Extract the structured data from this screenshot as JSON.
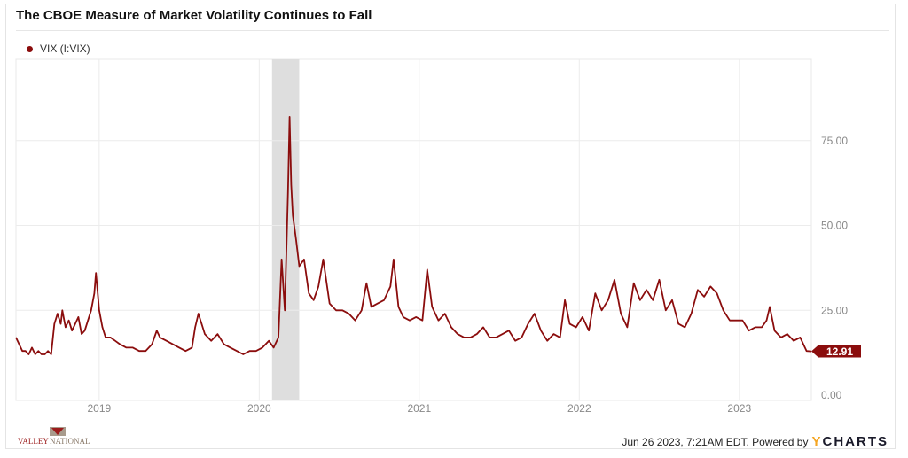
{
  "title": "The CBOE Measure of Market Volatility Continues to Fall",
  "footer": {
    "timestamp": "Jun 26 2023, 7:21AM EDT. Powered by",
    "brand_y": "Y",
    "brand_rest": "CHARTS"
  },
  "logo": {
    "text": "VALLEY NATIONAL"
  },
  "chart_data": {
    "type": "line",
    "title": "The CBOE Measure of Market Volatility Continues to Fall",
    "legend": [
      {
        "name": "VIX (I:VIX)",
        "color": "#8b0d0d"
      }
    ],
    "legend_placement": "top-left",
    "xlim": [
      2018.48,
      2023.45
    ],
    "ylim": [
      0,
      92
    ],
    "y_ticks": [
      {
        "v": 0,
        "label": "0.00"
      },
      {
        "v": 25,
        "label": "25.00"
      },
      {
        "v": 50,
        "label": "50.00"
      },
      {
        "v": 75,
        "label": "75.00"
      }
    ],
    "x_ticks": [
      {
        "v": 2019,
        "label": "2019"
      },
      {
        "v": 2020,
        "label": "2020"
      },
      {
        "v": 2021,
        "label": "2021"
      },
      {
        "v": 2022,
        "label": "2022"
      },
      {
        "v": 2023,
        "label": "2023"
      }
    ],
    "shaded_region": [
      2020.08,
      2020.25
    ],
    "last_value": "12.91",
    "grid": true,
    "series": [
      {
        "name": "VIX (I:VIX)",
        "x": [
          2018.48,
          2018.5,
          2018.52,
          2018.54,
          2018.56,
          2018.58,
          2018.6,
          2018.62,
          2018.64,
          2018.66,
          2018.68,
          2018.7,
          2018.72,
          2018.74,
          2018.76,
          2018.77,
          2018.79,
          2018.81,
          2018.83,
          2018.85,
          2018.87,
          2018.89,
          2018.91,
          2018.93,
          2018.95,
          2018.97,
          2018.98,
          2019.0,
          2019.02,
          2019.04,
          2019.07,
          2019.1,
          2019.13,
          2019.17,
          2019.21,
          2019.25,
          2019.29,
          2019.33,
          2019.36,
          2019.38,
          2019.42,
          2019.46,
          2019.5,
          2019.54,
          2019.58,
          2019.6,
          2019.62,
          2019.66,
          2019.7,
          2019.74,
          2019.78,
          2019.82,
          2019.86,
          2019.9,
          2019.94,
          2019.98,
          2020.02,
          2020.06,
          2020.09,
          2020.12,
          2020.14,
          2020.16,
          2020.18,
          2020.19,
          2020.2,
          2020.21,
          2020.23,
          2020.25,
          2020.28,
          2020.31,
          2020.34,
          2020.37,
          2020.4,
          2020.44,
          2020.48,
          2020.52,
          2020.56,
          2020.6,
          2020.64,
          2020.67,
          2020.7,
          2020.74,
          2020.78,
          2020.82,
          2020.84,
          2020.87,
          2020.9,
          2020.94,
          2020.98,
          2021.02,
          2021.05,
          2021.08,
          2021.12,
          2021.16,
          2021.2,
          2021.24,
          2021.28,
          2021.32,
          2021.36,
          2021.4,
          2021.44,
          2021.48,
          2021.52,
          2021.56,
          2021.6,
          2021.64,
          2021.68,
          2021.72,
          2021.76,
          2021.8,
          2021.84,
          2021.88,
          2021.91,
          2021.94,
          2021.98,
          2022.02,
          2022.06,
          2022.1,
          2022.14,
          2022.18,
          2022.22,
          2022.26,
          2022.3,
          2022.34,
          2022.38,
          2022.42,
          2022.46,
          2022.5,
          2022.54,
          2022.58,
          2022.62,
          2022.66,
          2022.7,
          2022.74,
          2022.78,
          2022.82,
          2022.86,
          2022.9,
          2022.94,
          2022.98,
          2023.02,
          2023.06,
          2023.1,
          2023.14,
          2023.17,
          2023.19,
          2023.22,
          2023.26,
          2023.3,
          2023.34,
          2023.38,
          2023.42,
          2023.45
        ],
        "y": [
          17,
          15,
          13,
          13,
          12,
          14,
          12,
          13,
          12,
          12,
          13,
          12,
          21,
          24,
          21,
          25,
          20,
          22,
          19,
          21,
          23,
          18,
          19,
          22,
          25,
          30,
          36,
          25,
          20,
          17,
          17,
          16,
          15,
          14,
          14,
          13,
          13,
          15,
          19,
          17,
          16,
          15,
          14,
          13,
          14,
          20,
          24,
          18,
          16,
          18,
          15,
          14,
          13,
          12,
          13,
          13,
          14,
          16,
          14,
          17,
          40,
          25,
          60,
          82,
          62,
          53,
          46,
          38,
          40,
          30,
          28,
          32,
          40,
          27,
          25,
          25,
          24,
          22,
          25,
          33,
          26,
          27,
          28,
          32,
          40,
          26,
          23,
          22,
          23,
          22,
          37,
          26,
          22,
          24,
          20,
          18,
          17,
          17,
          18,
          20,
          17,
          17,
          18,
          19,
          16,
          17,
          21,
          24,
          19,
          16,
          18,
          17,
          28,
          21,
          20,
          23,
          19,
          30,
          25,
          28,
          34,
          24,
          20,
          33,
          28,
          31,
          28,
          34,
          25,
          28,
          21,
          20,
          24,
          31,
          29,
          32,
          30,
          25,
          22,
          22,
          22,
          19,
          20,
          20,
          22,
          26,
          19,
          17,
          18,
          16,
          17,
          13,
          12.91
        ]
      }
    ]
  }
}
